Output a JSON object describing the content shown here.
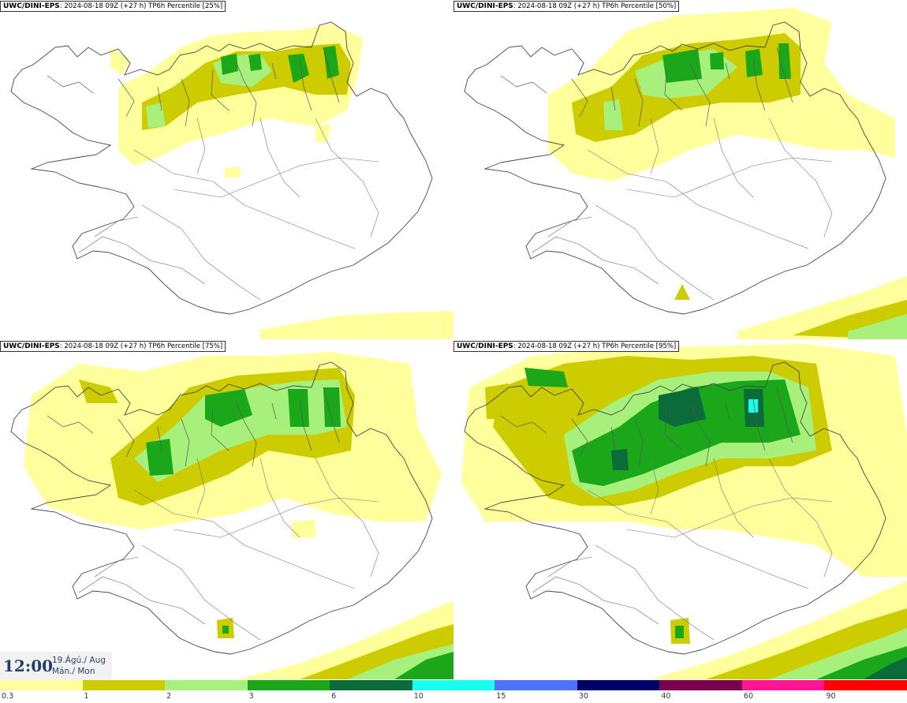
{
  "panels": [
    {
      "model": "UWC/DINI-EPS",
      "run": ": 2024-08-18 09Z (+27 h)",
      "product": "TP6h Percentile [25%]"
    },
    {
      "model": "UWC/DINI-EPS",
      "run": ": 2024-08-18 09Z (+27 h)",
      "product": "TP6h Percentile [50%]"
    },
    {
      "model": "UWC/DINI-EPS",
      "run": ": 2024-08-18 09Z (+27 h)",
      "product": "TP6h Percentile [75%]"
    },
    {
      "model": "UWC/DINI-EPS",
      "run": ": 2024-08-18 09Z (+27 h)",
      "product": "TP6h Percentile [95%]"
    }
  ],
  "valid_time": {
    "time": "12:00",
    "date_line1": "19.Ágú./ Aug",
    "date_line2": "Mán./ Mon"
  },
  "legend": {
    "ticks": [
      "0.3",
      "1",
      "2",
      "3",
      "6",
      "10",
      "15",
      "30",
      "40",
      "60",
      "90"
    ],
    "colors": [
      "#ffff9c",
      "#cccc00",
      "#a8f07c",
      "#1aa81a",
      "#0b6b3a",
      "#19ffef",
      "#4f73ff",
      "#00006b",
      "#7a004f",
      "#ff1493",
      "#ff0000"
    ]
  },
  "colors": {
    "c0": "#ffff9c",
    "c1": "#cccc00",
    "c2": "#a8f07c",
    "c3": "#1aa81a",
    "c4": "#0b6b3a",
    "c5": "#19ffef",
    "coast": "#444444"
  }
}
